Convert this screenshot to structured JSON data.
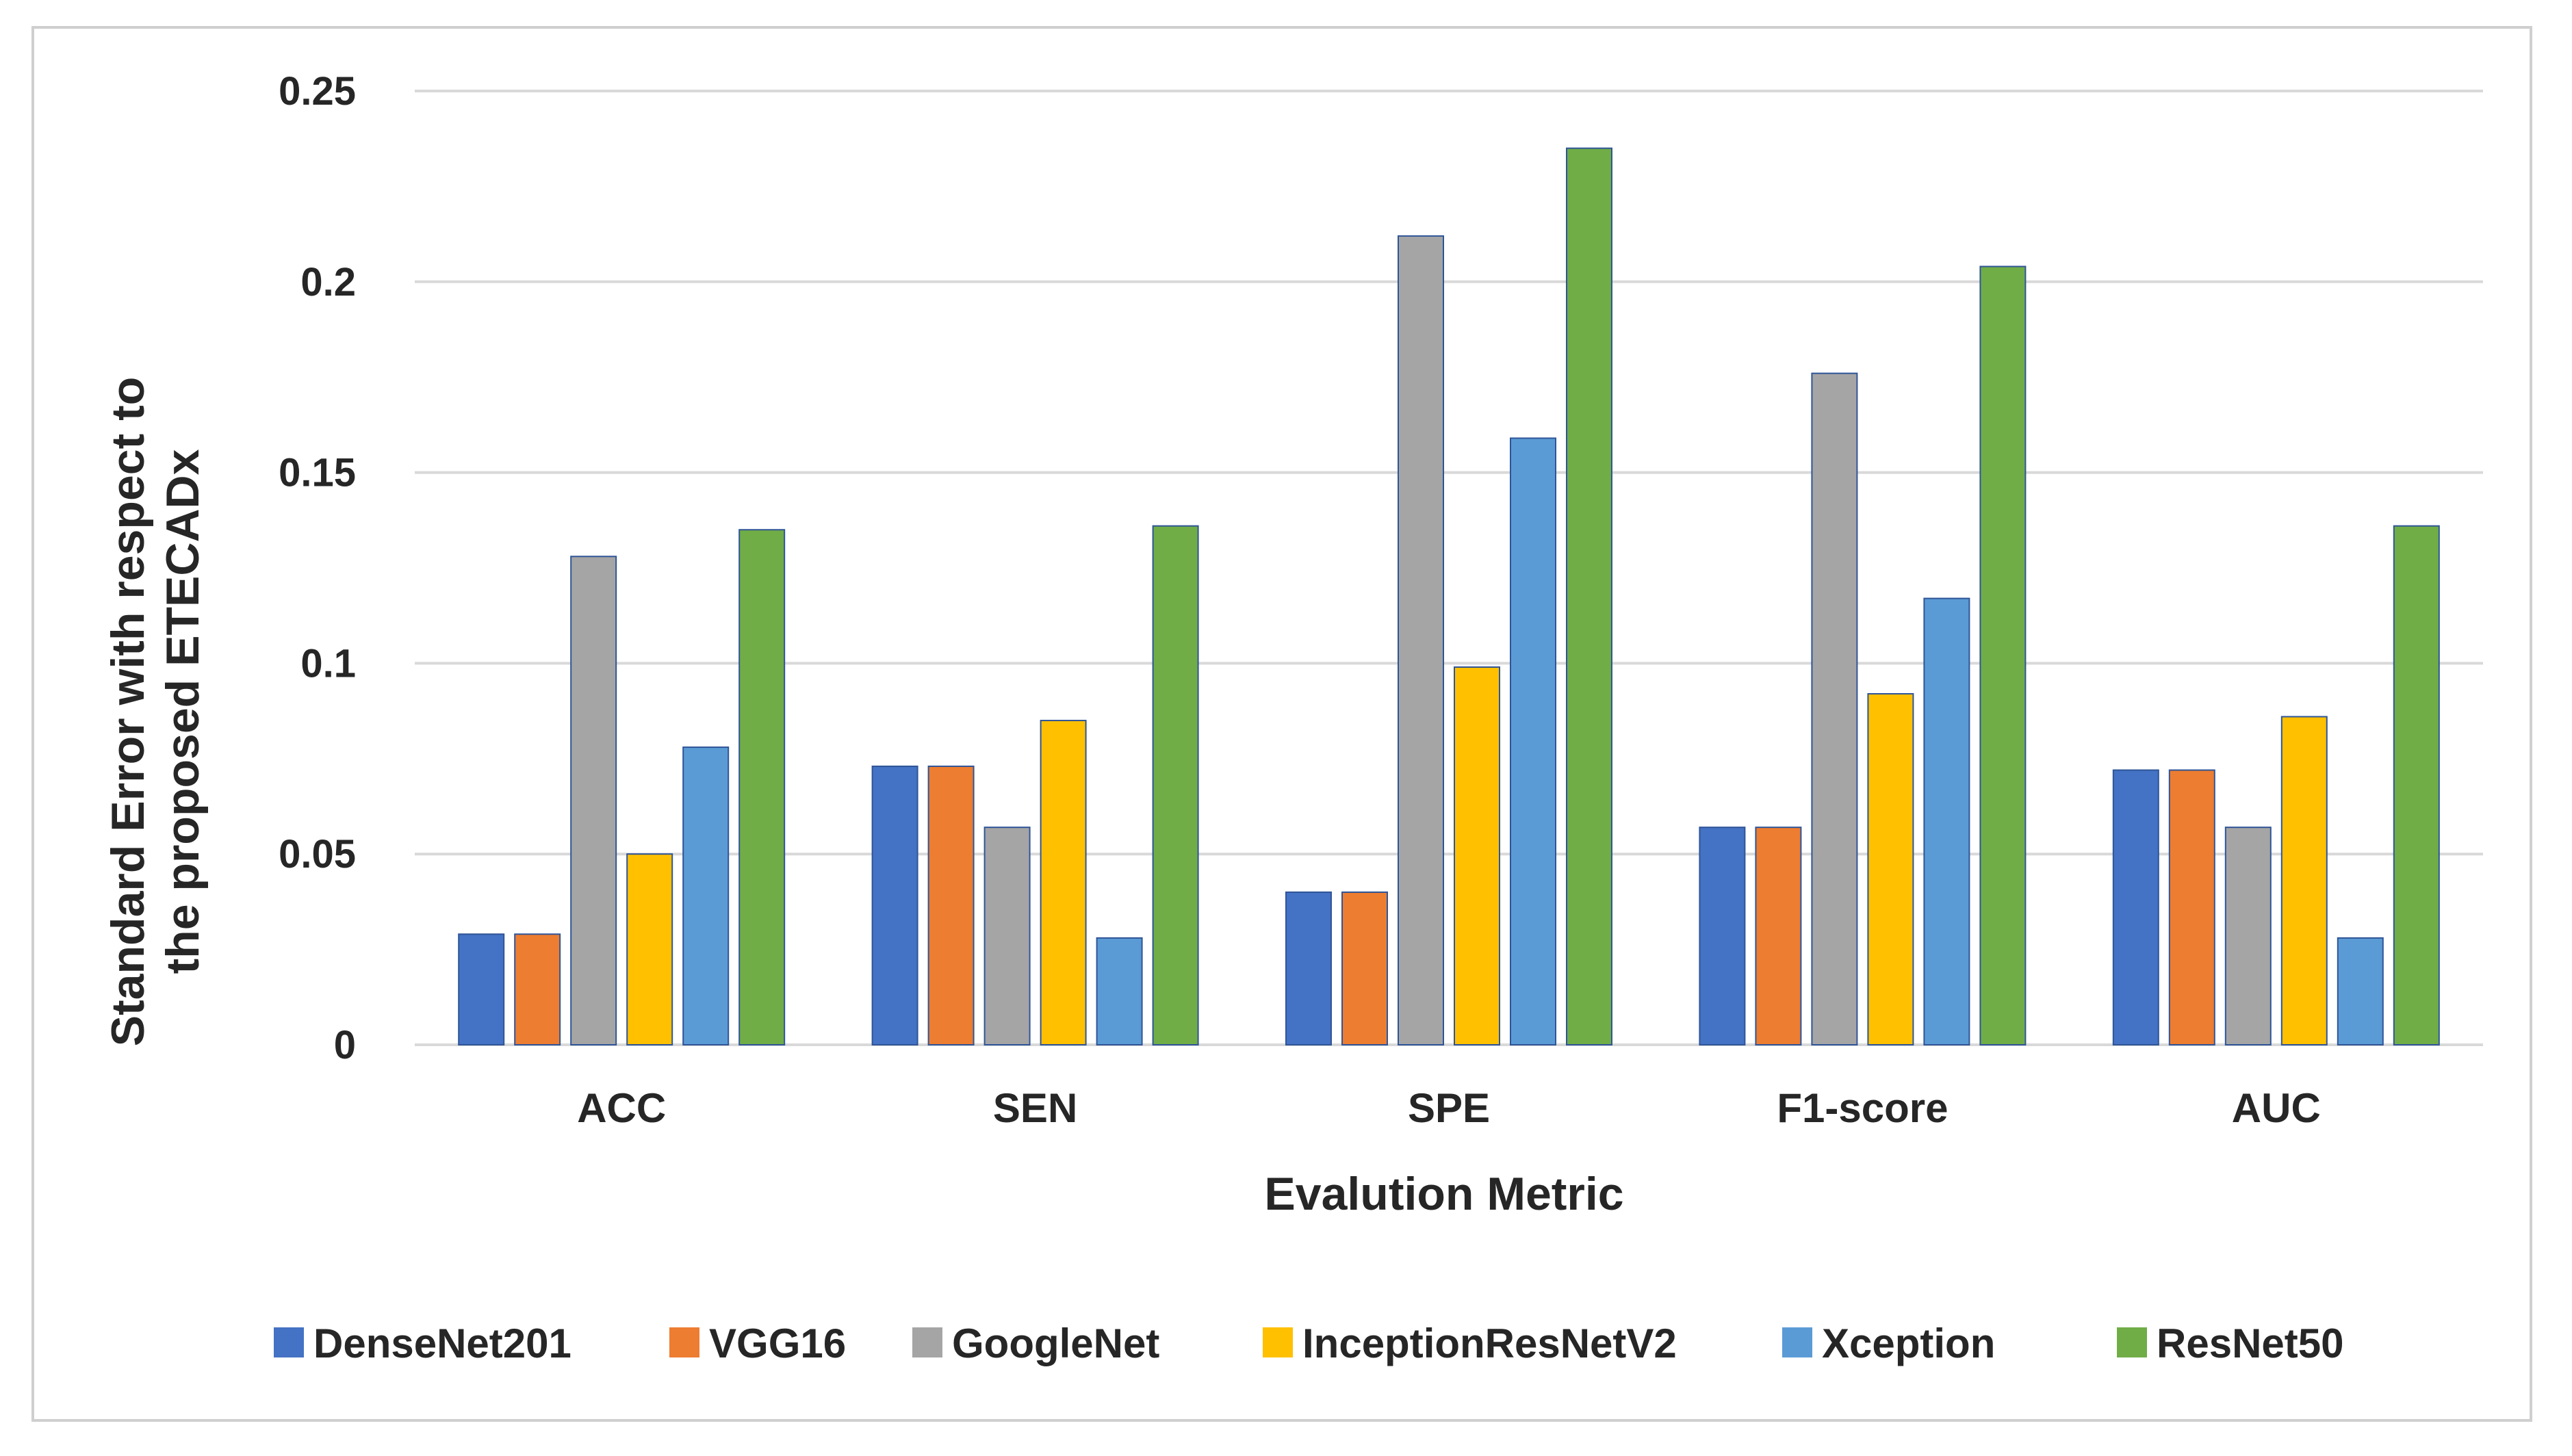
{
  "chart_data": {
    "type": "bar",
    "title": "",
    "xlabel": "Evalution Metric",
    "ylabel_lines": [
      "Standard Error with respect to",
      "the proposed ETECADx"
    ],
    "categories": [
      "ACC",
      "SEN",
      "SPE",
      "F1-score",
      "AUC"
    ],
    "ylim": [
      0,
      0.25
    ],
    "yticks": [
      0,
      0.05,
      0.1,
      0.15,
      0.2,
      0.25
    ],
    "ytick_labels": [
      "0",
      "0.05",
      "0.1",
      "0.15",
      "0.2",
      "0.25"
    ],
    "grid": true,
    "legend_position": "bottom",
    "series": [
      {
        "name": "DenseNet201",
        "color": "#4472C4",
        "values": [
          0.029,
          0.073,
          0.04,
          0.057,
          0.072
        ]
      },
      {
        "name": "VGG16",
        "color": "#ED7D31",
        "values": [
          0.029,
          0.073,
          0.04,
          0.057,
          0.072
        ]
      },
      {
        "name": "GoogleNet",
        "color": "#A5A5A5",
        "values": [
          0.128,
          0.057,
          0.212,
          0.176,
          0.057
        ]
      },
      {
        "name": "InceptionResNetV2",
        "color": "#FFC000",
        "values": [
          0.05,
          0.085,
          0.099,
          0.092,
          0.086
        ]
      },
      {
        "name": "Xception",
        "color": "#5B9BD5",
        "values": [
          0.078,
          0.028,
          0.159,
          0.117,
          0.028
        ]
      },
      {
        "name": "ResNet50",
        "color": "#70AD47",
        "values": [
          0.135,
          0.136,
          0.235,
          0.204,
          0.136
        ]
      }
    ]
  }
}
